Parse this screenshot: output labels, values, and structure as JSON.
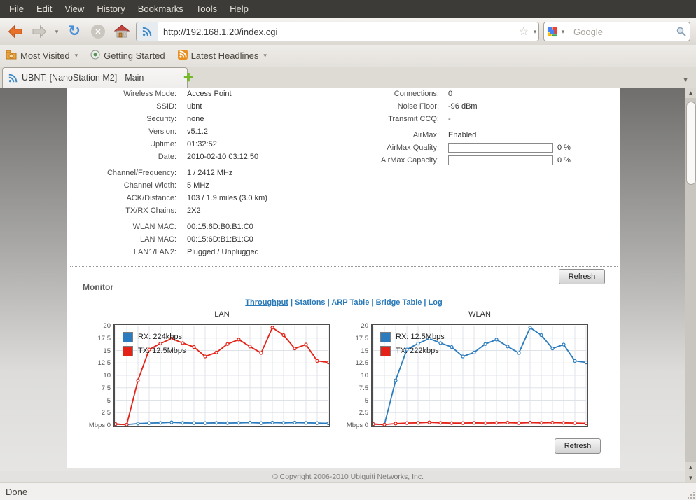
{
  "browser": {
    "menu": [
      "File",
      "Edit",
      "View",
      "History",
      "Bookmarks",
      "Tools",
      "Help"
    ],
    "url": "http://192.168.1.20/index.cgi",
    "search_placeholder": "Google",
    "bookmarks": [
      {
        "label": "Most Visited",
        "icon": "folder-icon",
        "dropdown": true
      },
      {
        "label": "Getting Started",
        "icon": "getting-started-icon",
        "dropdown": false
      },
      {
        "label": "Latest Headlines",
        "icon": "rss-orange-icon",
        "dropdown": true
      }
    ],
    "tab_title": "UBNT: [NanoStation M2] - Main",
    "status_text": "Done"
  },
  "page": {
    "status_left": [
      {
        "label": "Wireless Mode:",
        "value": "Access Point"
      },
      {
        "label": "SSID:",
        "value": "ubnt"
      },
      {
        "label": "Security:",
        "value": "none"
      },
      {
        "label": "Version:",
        "value": "v5.1.2"
      },
      {
        "label": "Uptime:",
        "value": "01:32:52"
      },
      {
        "label": "Date:",
        "value": "2010-02-10 03:12:50"
      },
      {
        "label": "Channel/Frequency:",
        "value": "1 / 2412 MHz",
        "gap": true
      },
      {
        "label": "Channel Width:",
        "value": "5 MHz"
      },
      {
        "label": "ACK/Distance:",
        "value": "103 / 1.9 miles (3.0 km)"
      },
      {
        "label": "TX/RX Chains:",
        "value": "2X2"
      },
      {
        "label": "WLAN MAC:",
        "value": "00:15:6D:B0:B1:C0",
        "gap": true
      },
      {
        "label": "LAN MAC:",
        "value": "00:15:6D:B1:B1:C0"
      },
      {
        "label": "LAN1/LAN2:",
        "value": "Plugged / Unplugged"
      }
    ],
    "status_right": [
      {
        "label": "Connections:",
        "value": "0"
      },
      {
        "label": "Noise Floor:",
        "value": "-96 dBm"
      },
      {
        "label": "Transmit CCQ:",
        "value": "-"
      },
      {
        "label": "AirMax:",
        "value": "Enabled",
        "gap": true
      },
      {
        "label": "AirMax Quality:",
        "value": "0 %",
        "progress": 0
      },
      {
        "label": "AirMax Capacity:",
        "value": "0 %",
        "progress": 0
      }
    ],
    "refresh_label": "Refresh",
    "monitor_title": "Monitor",
    "monitor_links": [
      "Throughput",
      "Stations",
      "ARP Table",
      "Bridge Table",
      "Log"
    ],
    "active_monitor_link": "Throughput",
    "copyright": "© Copyright 2006-2010 Ubiquiti Networks, Inc."
  },
  "colors": {
    "link_blue": "#2a7ab8",
    "chart_blue": "#2b7cbe",
    "chart_red": "#e42217",
    "grid": "#dfe3e8",
    "frame": "#4d4d4d"
  },
  "chart_data": [
    {
      "type": "line",
      "title": "LAN",
      "ylabel": "Mbps",
      "ylim": [
        0,
        20
      ],
      "ytick_step": 2.5,
      "ytick_labels": [
        "20",
        "17.5",
        "15",
        "12.5",
        "10",
        "7.5",
        "5",
        "2.5",
        "Mbps 0"
      ],
      "grid": true,
      "legend_position": "top-left",
      "series": [
        {
          "name": "RX: 224kbps",
          "color": "#2b7cbe",
          "values": [
            0.2,
            0.1,
            0.3,
            0.4,
            0.45,
            0.55,
            0.45,
            0.4,
            0.4,
            0.45,
            0.4,
            0.45,
            0.5,
            0.4,
            0.5,
            0.45,
            0.5,
            0.45,
            0.4,
            0.35
          ]
        },
        {
          "name": "TX: 12.5Mbps",
          "color": "#e42217",
          "values": [
            0.2,
            0.1,
            9.0,
            15.2,
            16.4,
            17.4,
            16.5,
            15.7,
            13.8,
            14.6,
            16.3,
            17.2,
            15.8,
            14.5,
            19.6,
            18.1,
            15.4,
            16.2,
            12.9,
            12.6
          ]
        }
      ]
    },
    {
      "type": "line",
      "title": "WLAN",
      "ylabel": "Mbps",
      "ylim": [
        0,
        20
      ],
      "ytick_step": 2.5,
      "ytick_labels": [
        "20",
        "17.5",
        "15",
        "12.5",
        "10",
        "7.5",
        "5",
        "2.5",
        "Mbps 0"
      ],
      "grid": true,
      "legend_position": "top-left",
      "series": [
        {
          "name": "RX: 12.5Mbps",
          "color": "#2b7cbe",
          "values": [
            0.2,
            0.1,
            9.0,
            15.2,
            16.4,
            17.4,
            16.5,
            15.7,
            13.8,
            14.6,
            16.3,
            17.2,
            15.8,
            14.5,
            19.6,
            18.1,
            15.4,
            16.2,
            12.9,
            12.6
          ]
        },
        {
          "name": "TX: 222kbps",
          "color": "#e42217",
          "values": [
            0.2,
            0.1,
            0.3,
            0.4,
            0.45,
            0.55,
            0.45,
            0.4,
            0.4,
            0.45,
            0.4,
            0.45,
            0.5,
            0.4,
            0.5,
            0.45,
            0.5,
            0.45,
            0.4,
            0.35
          ]
        }
      ]
    }
  ]
}
